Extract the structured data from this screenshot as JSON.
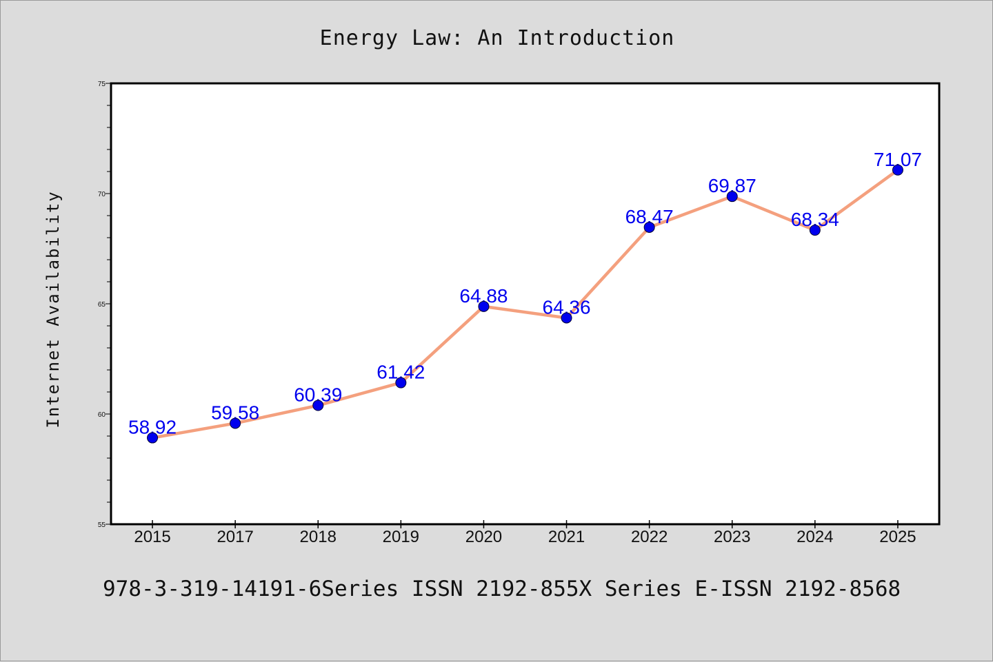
{
  "chart_data": {
    "type": "line",
    "title": "Energy Law: An Introduction",
    "xlabel": "",
    "ylabel": "Internet Availability",
    "categories": [
      "2015",
      "2017",
      "2018",
      "2019",
      "2020",
      "2021",
      "2022",
      "2023",
      "2024",
      "2025"
    ],
    "series": [
      {
        "values": [
          58.92,
          59.58,
          60.39,
          61.42,
          64.88,
          64.36,
          68.47,
          69.87,
          68.34,
          71.07
        ]
      }
    ],
    "data_labels": [
      "58.92",
      "59.58",
      "60.39",
      "61.42",
      "64.88",
      "64.36",
      "68.47",
      "69.87",
      "68.34",
      "71.07"
    ],
    "ylim": [
      55,
      75
    ],
    "yticks": [
      "55",
      "60",
      "65",
      "70",
      "75"
    ],
    "grid": false,
    "legend": "none",
    "colors": {
      "line": "#f4a07e",
      "marker": "#0000ee",
      "label": "#0000ee",
      "background": "#dcdcdc",
      "plot_bg": "#ffffff"
    }
  },
  "footer_text": "978-3-319-14191-6Series ISSN 2192-855X Series E-ISSN 2192-8568"
}
